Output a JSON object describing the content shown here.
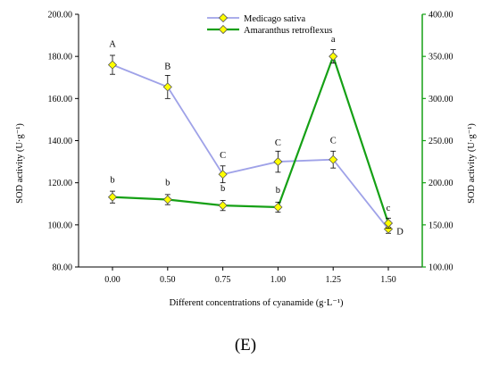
{
  "chart_data": {
    "type": "line",
    "categories": [
      "0.00",
      "0.50",
      "0.75",
      "1.00",
      "1.25",
      "1.50"
    ],
    "xlabel": "Different concentrations of cyanamide (g·L⁻¹)",
    "ylabel_left": "SOD activity (U·g⁻¹)",
    "ylabel_right": "SOD activity (U·g⁻¹)",
    "ylim_left": [
      80,
      200
    ],
    "ylim_right": [
      100,
      400
    ],
    "yticks_left": [
      "80.00",
      "100.00",
      "120.00",
      "140.00",
      "160.00",
      "180.00",
      "200.00"
    ],
    "yticks_right": [
      "100.00",
      "150.00",
      "200.00",
      "250.00",
      "300.00",
      "350.00",
      "400.00"
    ],
    "legend_position": "top-center",
    "grid": false,
    "series": [
      {
        "name": "Medicago sativa",
        "axis": "left",
        "color": "#9fa2e8",
        "marker_color": "#ffff00",
        "values": [
          176,
          165.5,
          124,
          130,
          131,
          98
        ],
        "errors": [
          4.5,
          5.5,
          4,
          5,
          4,
          2
        ],
        "labels": [
          "A",
          "B",
          "C",
          "C",
          "C",
          "D"
        ]
      },
      {
        "name": "Amaranthus retroflexus",
        "axis": "right",
        "color": "#15a015",
        "marker_color": "#ffff00",
        "values": [
          183,
          180,
          173,
          171,
          350,
          152
        ],
        "errors": [
          7,
          6,
          6,
          6,
          8,
          6
        ],
        "labels": [
          "b",
          "b",
          "b",
          "b",
          "a",
          "c"
        ]
      }
    ],
    "panel_label": "(E)"
  }
}
